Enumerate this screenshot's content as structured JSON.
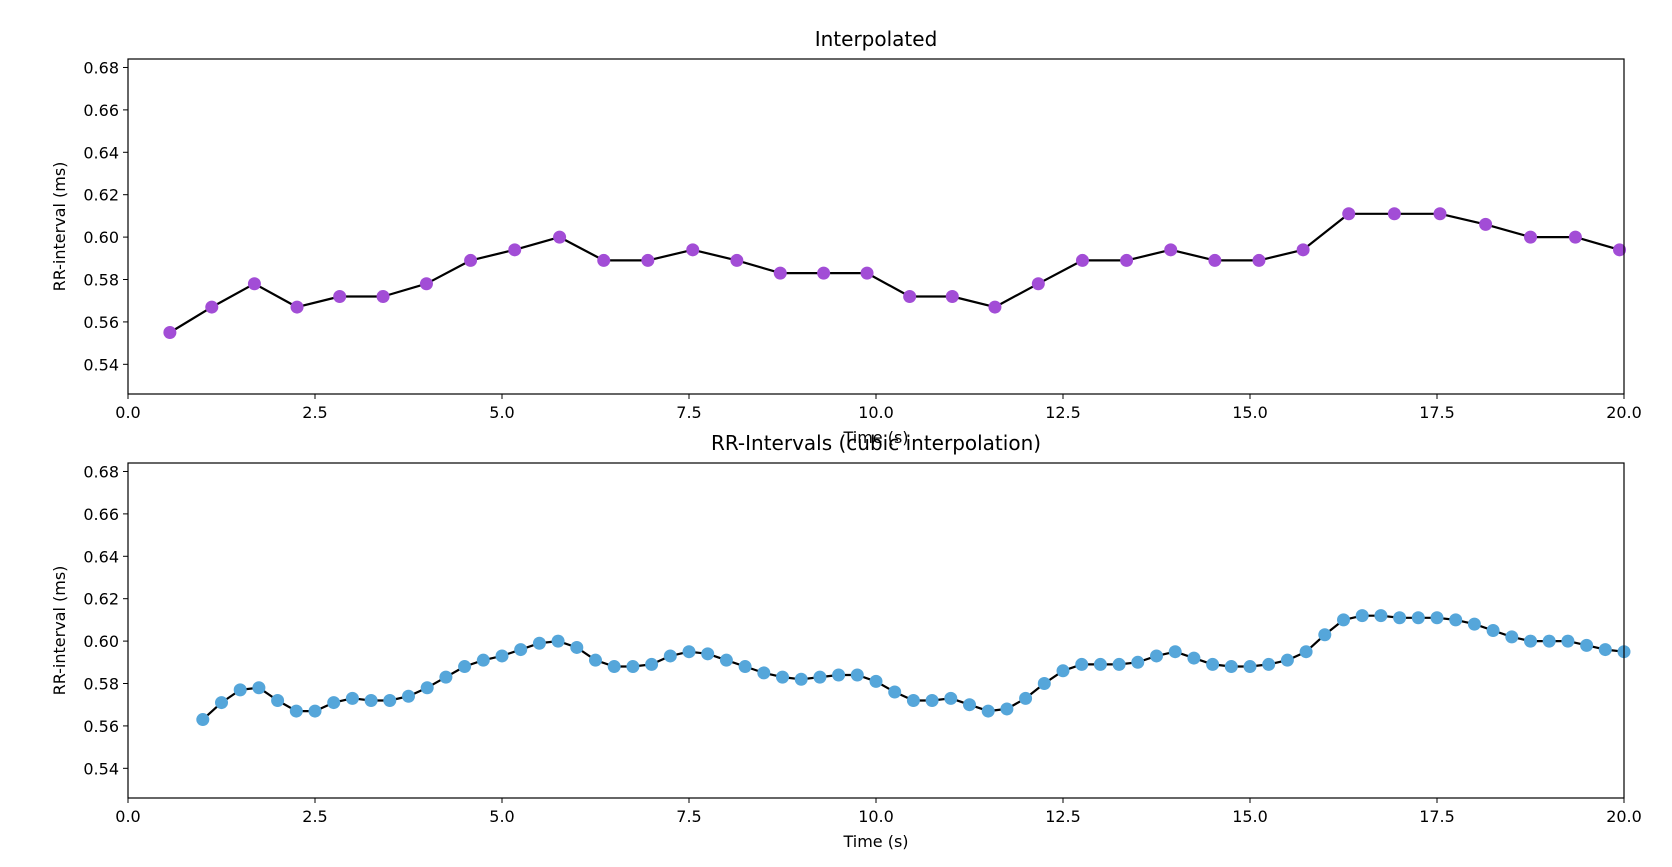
{
  "colors": {
    "line": "#000000",
    "top_markers": "#a24dd6",
    "bottom_markers": "#55a6da",
    "frame": "#000000",
    "background": "#ffffff"
  },
  "chart_data": [
    {
      "type": "line",
      "title": "Interpolated",
      "xlabel": "Time (s)",
      "ylabel": "RR-interval (ms)",
      "xlim": [
        0.0,
        20.0
      ],
      "ylim": [
        0.526,
        0.684
      ],
      "xticks": [
        "0.0",
        "2.5",
        "5.0",
        "7.5",
        "10.0",
        "12.5",
        "15.0",
        "17.5",
        "20.0"
      ],
      "yticks": [
        "0.54",
        "0.56",
        "0.58",
        "0.60",
        "0.62",
        "0.64",
        "0.66",
        "0.68"
      ],
      "grid": false,
      "marker_color": "#a24dd6",
      "x": [
        0.56,
        1.12,
        1.69,
        2.26,
        2.83,
        3.41,
        3.99,
        4.58,
        5.17,
        5.77,
        6.36,
        6.95,
        7.55,
        8.14,
        8.72,
        9.3,
        9.88,
        10.45,
        11.02,
        11.59,
        12.17,
        12.76,
        13.35,
        13.94,
        14.53,
        15.12,
        15.71,
        16.32,
        16.93,
        17.54,
        18.15,
        18.75,
        19.35,
        19.94
      ],
      "y": [
        0.555,
        0.567,
        0.578,
        0.567,
        0.572,
        0.572,
        0.578,
        0.589,
        0.594,
        0.6,
        0.589,
        0.589,
        0.594,
        0.589,
        0.583,
        0.583,
        0.583,
        0.572,
        0.572,
        0.567,
        0.578,
        0.589,
        0.589,
        0.594,
        0.589,
        0.589,
        0.594,
        0.611,
        0.611,
        0.611,
        0.606,
        0.6,
        0.6,
        0.594
      ]
    },
    {
      "type": "line",
      "title": "RR-Intervals (cubic interpolation)",
      "xlabel": "Time (s)",
      "ylabel": "RR-interval (ms)",
      "xlim": [
        0.0,
        20.0
      ],
      "ylim": [
        0.526,
        0.684
      ],
      "xticks": [
        "0.0",
        "2.5",
        "5.0",
        "7.5",
        "10.0",
        "12.5",
        "15.0",
        "17.5",
        "20.0"
      ],
      "yticks": [
        "0.54",
        "0.56",
        "0.58",
        "0.60",
        "0.62",
        "0.64",
        "0.66",
        "0.68"
      ],
      "grid": false,
      "marker_color": "#55a6da",
      "x": [
        1.0,
        1.25,
        1.5,
        1.75,
        2.0,
        2.25,
        2.5,
        2.75,
        3.0,
        3.25,
        3.5,
        3.75,
        4.0,
        4.25,
        4.5,
        4.75,
        5.0,
        5.25,
        5.5,
        5.75,
        6.0,
        6.25,
        6.5,
        6.75,
        7.0,
        7.25,
        7.5,
        7.75,
        8.0,
        8.25,
        8.5,
        8.75,
        9.0,
        9.25,
        9.5,
        9.75,
        10.0,
        10.25,
        10.5,
        10.75,
        11.0,
        11.25,
        11.5,
        11.75,
        12.0,
        12.25,
        12.5,
        12.75,
        13.0,
        13.25,
        13.5,
        13.75,
        14.0,
        14.25,
        14.5,
        14.75,
        15.0,
        15.25,
        15.5,
        15.75,
        16.0,
        16.25,
        16.5,
        16.75,
        17.0,
        17.25,
        17.5,
        17.75,
        18.0,
        18.25,
        18.5,
        18.75,
        19.0,
        19.25,
        19.5,
        19.75,
        20.0
      ],
      "y": [
        0.563,
        0.571,
        0.577,
        0.578,
        0.572,
        0.567,
        0.567,
        0.571,
        0.573,
        0.572,
        0.572,
        0.574,
        0.578,
        0.583,
        0.588,
        0.591,
        0.593,
        0.596,
        0.599,
        0.6,
        0.597,
        0.591,
        0.588,
        0.588,
        0.589,
        0.593,
        0.595,
        0.594,
        0.591,
        0.588,
        0.585,
        0.583,
        0.582,
        0.583,
        0.584,
        0.584,
        0.581,
        0.576,
        0.572,
        0.572,
        0.573,
        0.57,
        0.567,
        0.568,
        0.573,
        0.58,
        0.586,
        0.589,
        0.589,
        0.589,
        0.59,
        0.593,
        0.595,
        0.592,
        0.589,
        0.588,
        0.588,
        0.589,
        0.591,
        0.595,
        0.603,
        0.61,
        0.612,
        0.612,
        0.611,
        0.611,
        0.611,
        0.61,
        0.608,
        0.605,
        0.602,
        0.6,
        0.6,
        0.6,
        0.598,
        0.596,
        0.595
      ]
    }
  ]
}
